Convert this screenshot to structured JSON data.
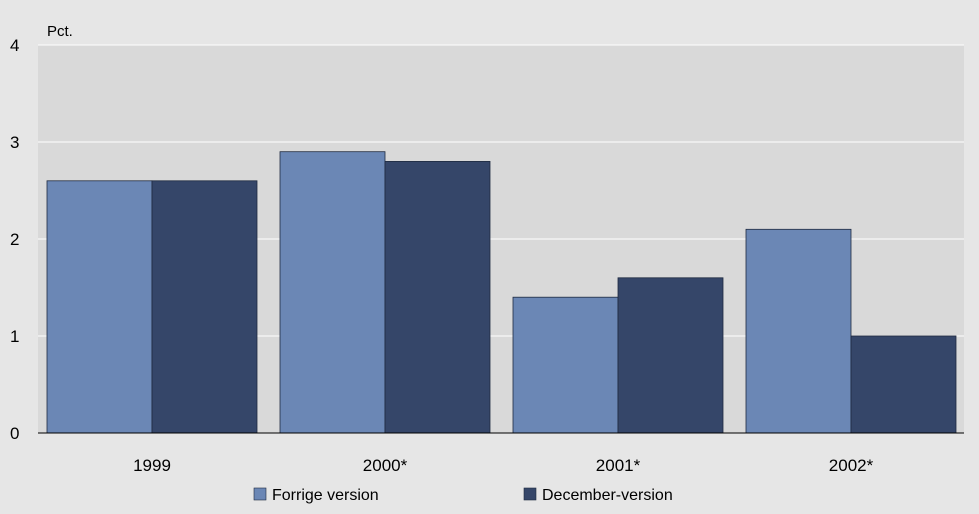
{
  "chart_data": {
    "type": "bar",
    "title": "",
    "unit_label": "Pct.",
    "xlabel": "",
    "ylabel": "",
    "categories": [
      "1999",
      "2000*",
      "2001*",
      "2002*"
    ],
    "series": [
      {
        "name": "Forrige version",
        "color": "#6b87b5",
        "values": [
          2.6,
          2.9,
          1.4,
          2.1
        ]
      },
      {
        "name": "December-version",
        "color": "#354669",
        "values": [
          2.6,
          2.8,
          1.6,
          1.0
        ]
      }
    ],
    "ylim": [
      0,
      4
    ],
    "yticks": [
      0,
      1,
      2,
      3,
      4
    ],
    "grid": true,
    "legend_position": "bottom",
    "colors": {
      "page_background": "#e6e6e6",
      "plot_background": "#d9d9d9",
      "gridline": "#ffffff",
      "axis": "#000000"
    }
  }
}
